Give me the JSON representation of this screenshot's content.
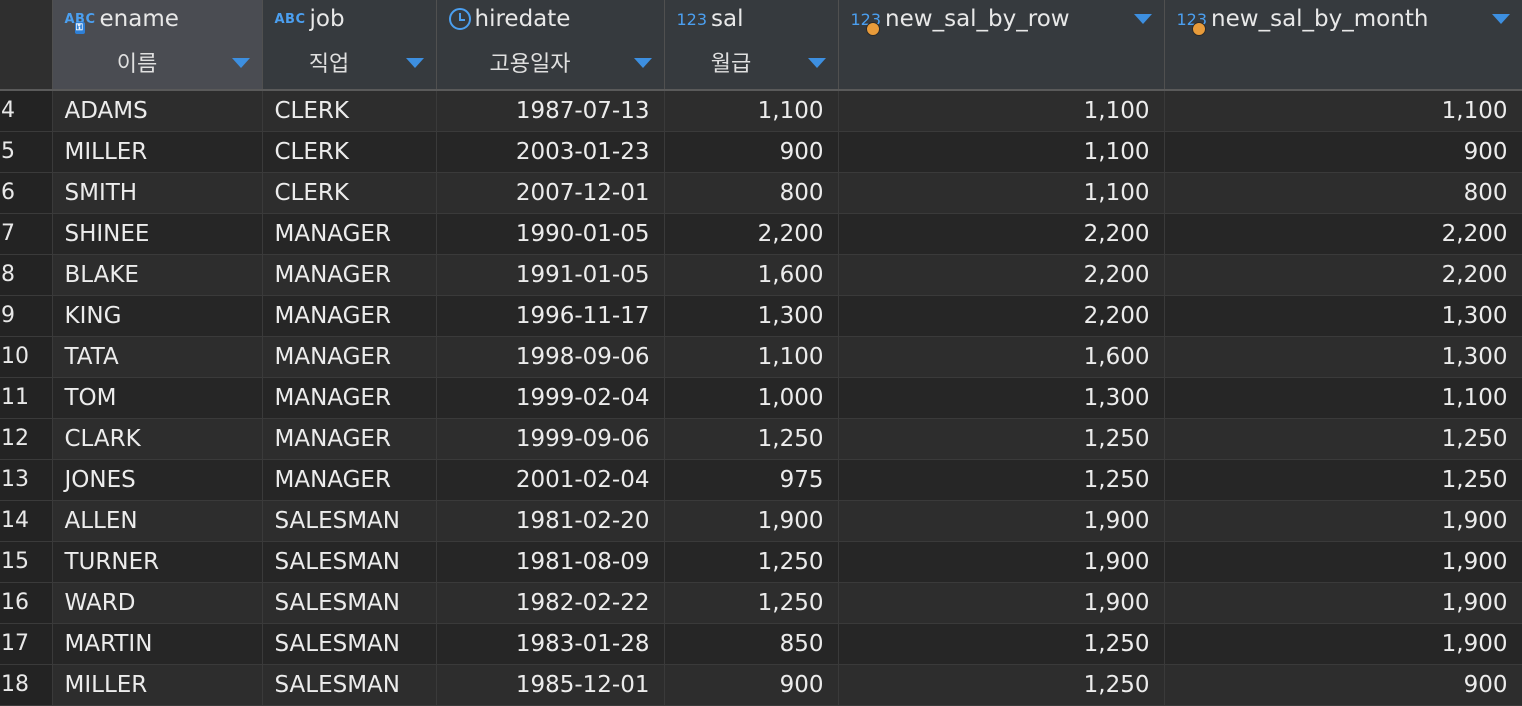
{
  "columns": [
    {
      "name": "ename",
      "sub": "이름",
      "type": "abc-key"
    },
    {
      "name": "job",
      "sub": "직업",
      "type": "abc"
    },
    {
      "name": "hiredate",
      "sub": "고용일자",
      "type": "date"
    },
    {
      "name": "sal",
      "sub": "월급",
      "type": "num"
    },
    {
      "name": "new_sal_by_row",
      "sub": "",
      "type": "num-dot"
    },
    {
      "name": "new_sal_by_month",
      "sub": "",
      "type": "num-dot"
    }
  ],
  "type_labels": {
    "abc": "ABC",
    "num": "123",
    "abc_short": "ABC"
  },
  "rows": [
    {
      "n": "4",
      "ename": "ADAMS",
      "job": "CLERK",
      "hiredate": "1987-07-13",
      "sal": "1,100",
      "row": "1,100",
      "month": "1,100"
    },
    {
      "n": "5",
      "ename": "MILLER",
      "job": "CLERK",
      "hiredate": "2003-01-23",
      "sal": "900",
      "row": "1,100",
      "month": "900"
    },
    {
      "n": "6",
      "ename": "SMITH",
      "job": "CLERK",
      "hiredate": "2007-12-01",
      "sal": "800",
      "row": "1,100",
      "month": "800"
    },
    {
      "n": "7",
      "ename": "SHINEE",
      "job": "MANAGER",
      "hiredate": "1990-01-05",
      "sal": "2,200",
      "row": "2,200",
      "month": "2,200"
    },
    {
      "n": "8",
      "ename": "BLAKE",
      "job": "MANAGER",
      "hiredate": "1991-01-05",
      "sal": "1,600",
      "row": "2,200",
      "month": "2,200"
    },
    {
      "n": "9",
      "ename": "KING",
      "job": "MANAGER",
      "hiredate": "1996-11-17",
      "sal": "1,300",
      "row": "2,200",
      "month": "1,300"
    },
    {
      "n": "10",
      "ename": "TATA",
      "job": "MANAGER",
      "hiredate": "1998-09-06",
      "sal": "1,100",
      "row": "1,600",
      "month": "1,300"
    },
    {
      "n": "11",
      "ename": "TOM",
      "job": "MANAGER",
      "hiredate": "1999-02-04",
      "sal": "1,000",
      "row": "1,300",
      "month": "1,100"
    },
    {
      "n": "12",
      "ename": "CLARK",
      "job": "MANAGER",
      "hiredate": "1999-09-06",
      "sal": "1,250",
      "row": "1,250",
      "month": "1,250"
    },
    {
      "n": "13",
      "ename": "JONES",
      "job": "MANAGER",
      "hiredate": "2001-02-04",
      "sal": "975",
      "row": "1,250",
      "month": "1,250"
    },
    {
      "n": "14",
      "ename": "ALLEN",
      "job": "SALESMAN",
      "hiredate": "1981-02-20",
      "sal": "1,900",
      "row": "1,900",
      "month": "1,900"
    },
    {
      "n": "15",
      "ename": "TURNER",
      "job": "SALESMAN",
      "hiredate": "1981-08-09",
      "sal": "1,250",
      "row": "1,900",
      "month": "1,900"
    },
    {
      "n": "16",
      "ename": "WARD",
      "job": "SALESMAN",
      "hiredate": "1982-02-22",
      "sal": "1,250",
      "row": "1,900",
      "month": "1,900"
    },
    {
      "n": "17",
      "ename": "MARTIN",
      "job": "SALESMAN",
      "hiredate": "1983-01-28",
      "sal": "850",
      "row": "1,250",
      "month": "1,900"
    },
    {
      "n": "18",
      "ename": "MILLER",
      "job": "SALESMAN",
      "hiredate": "1985-12-01",
      "sal": "900",
      "row": "1,250",
      "month": "900"
    }
  ],
  "colors": {
    "accent": "#3d8fe0",
    "dot": "#e89b3a",
    "bg": "#2b2b2b"
  }
}
